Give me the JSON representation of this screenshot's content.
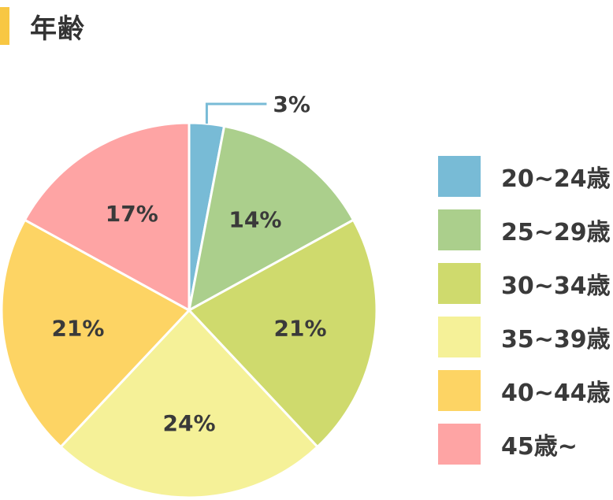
{
  "title": "年齢",
  "accent_color": "#f8c743",
  "chart_data": {
    "type": "pie",
    "title": "年齢",
    "categories": [
      "20~24歳",
      "25~29歳",
      "30~34歳",
      "35~39歳",
      "40~44歳",
      "45歳~"
    ],
    "values": [
      3,
      14,
      21,
      24,
      21,
      17
    ],
    "labels": [
      "3%",
      "14%",
      "21%",
      "24%",
      "21%",
      "17%"
    ],
    "colors": [
      "#78bbd6",
      "#abcf8c",
      "#cfda6d",
      "#f5f198",
      "#fdd464",
      "#fea4a4"
    ],
    "start": "top",
    "direction": "clockwise",
    "legend_position": "right"
  }
}
